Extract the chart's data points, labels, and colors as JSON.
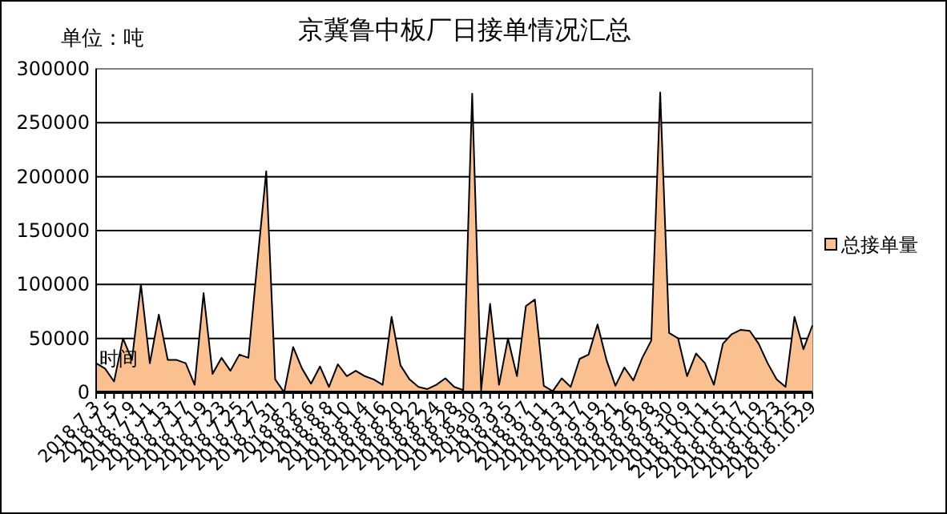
{
  "chart_data": {
    "type": "area",
    "title": "京冀鲁中板厂日接单情况汇总",
    "ylabel": "单位：吨",
    "xlabel": "时间",
    "categories": [
      "2018.7.3",
      null,
      "2018.7.5",
      null,
      "2018.7.9",
      null,
      "2018.7.11",
      null,
      "2018.7.13",
      null,
      "2018.7.17",
      null,
      "2018.7.19",
      null,
      "2018.7.23",
      null,
      "2018.7.25",
      null,
      "2018.7.27",
      null,
      "2018.7.31",
      null,
      "2018.8.2",
      null,
      "2018.8.6",
      null,
      "2018.8.8",
      null,
      "2018.8.10",
      null,
      "2018.8.14",
      null,
      "2018.8.16",
      null,
      "2018.8.20",
      null,
      "2018.8.22",
      null,
      "2018.8.24",
      null,
      "2018.8.28",
      null,
      "2018.8.30",
      null,
      "2018.9.3",
      null,
      "2018.9.5",
      null,
      "2018.9.7",
      null,
      "2018.9.11",
      null,
      "2018.9.13",
      null,
      "2018.9.17",
      null,
      "2018.9.19",
      null,
      "2018.9.21",
      null,
      "2018.9.26",
      null,
      "2018.9.28",
      null,
      "2018.9.30",
      null,
      "2018.10.9",
      null,
      "2018.10.11",
      null,
      "2018.10.15",
      null,
      "2018.10.17",
      null,
      "2018.10.19",
      null,
      "2018.10.23",
      null,
      "2018.10.25",
      null,
      "2018.10.29"
    ],
    "series": [
      {
        "name": "总接单量",
        "color": "#fac090",
        "values": [
          27000,
          22000,
          10000,
          50000,
          30000,
          100000,
          27000,
          72000,
          30000,
          30000,
          27000,
          7000,
          92000,
          17000,
          32000,
          20000,
          35000,
          32000,
          120000,
          205000,
          12000,
          0,
          42000,
          22000,
          8000,
          24000,
          5000,
          26000,
          15000,
          20000,
          15000,
          12000,
          7000,
          70000,
          25000,
          12000,
          5000,
          3000,
          7000,
          13000,
          5000,
          2000,
          277000,
          2000,
          82000,
          7000,
          50000,
          15000,
          80000,
          86000,
          6000,
          1000,
          13000,
          5000,
          31000,
          35000,
          63000,
          30000,
          6000,
          23000,
          11000,
          32000,
          48000,
          278000,
          55000,
          50000,
          15000,
          36000,
          27000,
          7000,
          45000,
          54000,
          58000,
          57000,
          45000,
          27000,
          12000,
          5000,
          70000,
          40000,
          62000
        ]
      }
    ],
    "ylim": [
      0,
      300000
    ],
    "yticks": [
      0,
      50000,
      100000,
      150000,
      200000,
      250000,
      300000
    ],
    "grid": "y",
    "legend": "right"
  }
}
